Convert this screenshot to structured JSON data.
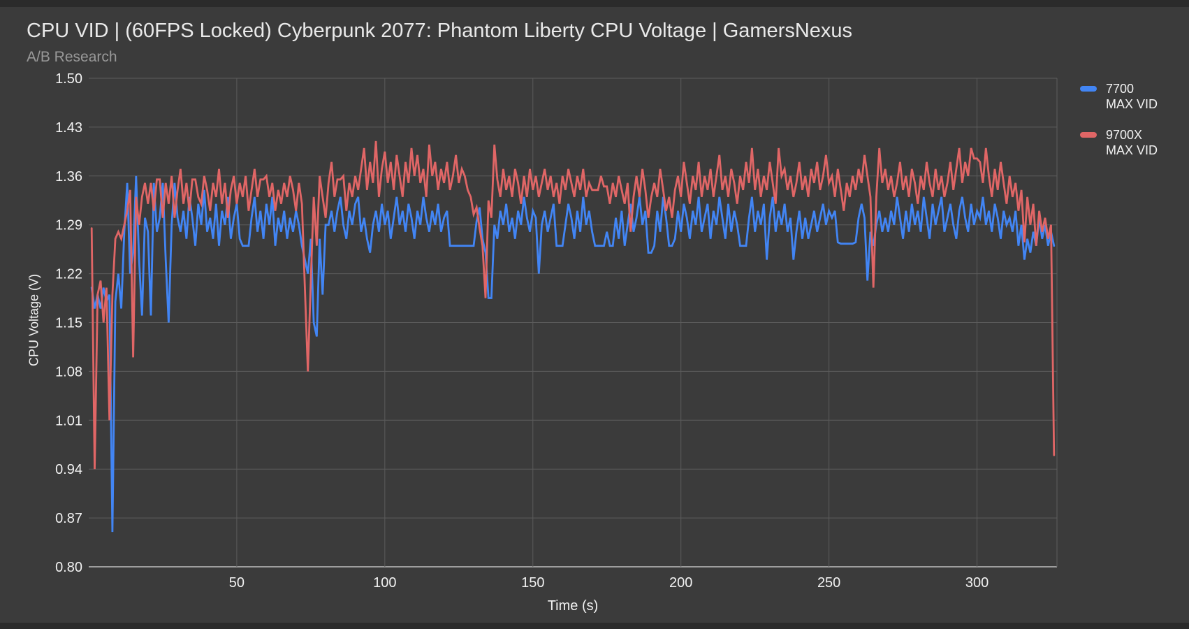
{
  "header": {
    "title": "CPU VID | (60FPS Locked) Cyberpunk 2077: Phantom Liberty CPU Voltage | GamersNexus",
    "subtitle": "A/B Research"
  },
  "legend": [
    {
      "line1": "7700",
      "line2": "MAX VID",
      "color": "#4285f4"
    },
    {
      "line1": "9700X",
      "line2": "MAX VID",
      "color": "#e06666"
    }
  ],
  "colors": {
    "background": "#3b3b3b",
    "gridline": "#5c5c5c",
    "baseline": "#9e9e9e",
    "tick_text": "#f2f2f2"
  },
  "chart_data": {
    "type": "line",
    "title": "CPU VID | (60FPS Locked) Cyberpunk 2077: Phantom Liberty CPU Voltage | GamersNexus",
    "subtitle": "A/B Research",
    "xlabel": "Time (s)",
    "ylabel": "CPU Voltage (V)",
    "xlim": [
      0,
      327
    ],
    "ylim": [
      0.8,
      1.5
    ],
    "x_ticks": [
      50,
      100,
      150,
      200,
      250,
      300
    ],
    "y_ticks": [
      0.8,
      0.87,
      0.94,
      1.01,
      1.08,
      1.15,
      1.22,
      1.29,
      1.36,
      1.43,
      1.5
    ],
    "grid": true,
    "legend_position": "right",
    "x_start": 1,
    "x_step": 1,
    "series": [
      {
        "name": "7700 MAX VID",
        "color": "#4285f4",
        "values": [
          1.2,
          1.17,
          1.19,
          1.17,
          1.2,
          1.18,
          1.19,
          0.85,
          1.18,
          1.22,
          1.17,
          1.28,
          1.35,
          1.22,
          1.25,
          1.36,
          1.24,
          1.16,
          1.3,
          1.28,
          1.16,
          1.35,
          1.28,
          1.3,
          1.35,
          1.24,
          1.15,
          1.29,
          1.35,
          1.3,
          1.28,
          1.31,
          1.27,
          1.33,
          1.3,
          1.26,
          1.32,
          1.29,
          1.34,
          1.28,
          1.3,
          1.27,
          1.32,
          1.26,
          1.31,
          1.29,
          1.33,
          1.27,
          1.3,
          1.32,
          1.27,
          1.26,
          1.26,
          1.26,
          1.3,
          1.33,
          1.28,
          1.31,
          1.27,
          1.32,
          1.29,
          1.33,
          1.26,
          1.3,
          1.28,
          1.31,
          1.27,
          1.3,
          1.28,
          1.31,
          1.29,
          1.26,
          1.24,
          1.22,
          1.27,
          1.15,
          1.13,
          1.27,
          1.19,
          1.29,
          1.29,
          1.31,
          1.28,
          1.31,
          1.33,
          1.29,
          1.27,
          1.31,
          1.29,
          1.32,
          1.33,
          1.28,
          1.3,
          1.27,
          1.25,
          1.29,
          1.31,
          1.28,
          1.32,
          1.29,
          1.31,
          1.27,
          1.3,
          1.33,
          1.29,
          1.31,
          1.28,
          1.32,
          1.3,
          1.27,
          1.31,
          1.29,
          1.33,
          1.3,
          1.28,
          1.31,
          1.29,
          1.32,
          1.28,
          1.3,
          1.31,
          1.26,
          1.26,
          1.26,
          1.26,
          1.26,
          1.26,
          1.26,
          1.26,
          1.26,
          1.295,
          1.315,
          1.27,
          1.25,
          1.185,
          1.185,
          1.29,
          1.27,
          1.31,
          1.29,
          1.32,
          1.28,
          1.3,
          1.27,
          1.31,
          1.29,
          1.33,
          1.3,
          1.28,
          1.31,
          1.3,
          1.22,
          1.29,
          1.31,
          1.28,
          1.3,
          1.32,
          1.26,
          1.26,
          1.26,
          1.29,
          1.32,
          1.3,
          1.27,
          1.31,
          1.28,
          1.33,
          1.29,
          1.31,
          1.28,
          1.26,
          1.26,
          1.26,
          1.26,
          1.28,
          1.26,
          1.26,
          1.3,
          1.27,
          1.31,
          1.26,
          1.29,
          1.32,
          1.28,
          1.3,
          1.33,
          1.29,
          1.31,
          1.25,
          1.25,
          1.26,
          1.31,
          1.28,
          1.33,
          1.3,
          1.26,
          1.26,
          1.27,
          1.31,
          1.28,
          1.32,
          1.3,
          1.27,
          1.31,
          1.29,
          1.33,
          1.28,
          1.3,
          1.32,
          1.27,
          1.31,
          1.29,
          1.33,
          1.3,
          1.27,
          1.32,
          1.28,
          1.31,
          1.29,
          1.26,
          1.26,
          1.26,
          1.3,
          1.33,
          1.28,
          1.31,
          1.29,
          1.32,
          1.24,
          1.3,
          1.33,
          1.28,
          1.31,
          1.29,
          1.32,
          1.28,
          1.3,
          1.24,
          1.28,
          1.31,
          1.27,
          1.3,
          1.27,
          1.29,
          1.31,
          1.28,
          1.3,
          1.32,
          1.29,
          1.31,
          1.3,
          1.31,
          1.265,
          1.263,
          1.263,
          1.263,
          1.263,
          1.263,
          1.265,
          1.3,
          1.32,
          1.3,
          1.21,
          1.28,
          1.26,
          1.29,
          1.31,
          1.28,
          1.3,
          1.28,
          1.31,
          1.29,
          1.33,
          1.3,
          1.27,
          1.31,
          1.28,
          1.32,
          1.29,
          1.31,
          1.28,
          1.33,
          1.3,
          1.27,
          1.32,
          1.29,
          1.31,
          1.33,
          1.28,
          1.3,
          1.32,
          1.29,
          1.27,
          1.31,
          1.33,
          1.3,
          1.28,
          1.32,
          1.29,
          1.31,
          1.3,
          1.33,
          1.29,
          1.31,
          1.28,
          1.32,
          1.3,
          1.27,
          1.31,
          1.29,
          1.3,
          1.28,
          1.31,
          1.26,
          1.29,
          1.24,
          1.27,
          1.25,
          1.28,
          1.26,
          1.3,
          1.27,
          1.29,
          1.26,
          1.28,
          1.26
        ]
      },
      {
        "name": "9700X MAX VID",
        "color": "#e06666",
        "values": [
          1.285,
          0.94,
          1.19,
          1.21,
          1.15,
          1.2,
          1.01,
          1.19,
          1.27,
          1.28,
          1.27,
          1.29,
          1.31,
          1.34,
          1.1,
          1.33,
          1.29,
          1.33,
          1.35,
          1.32,
          1.35,
          1.31,
          1.355,
          1.355,
          1.3,
          1.35,
          1.32,
          1.36,
          1.3,
          1.34,
          1.37,
          1.32,
          1.35,
          1.31,
          1.355,
          1.355,
          1.33,
          1.32,
          1.36,
          1.34,
          1.31,
          1.35,
          1.33,
          1.37,
          1.32,
          1.35,
          1.3,
          1.34,
          1.36,
          1.32,
          1.35,
          1.33,
          1.36,
          1.31,
          1.34,
          1.37,
          1.33,
          1.355,
          1.355,
          1.36,
          1.33,
          1.35,
          1.31,
          1.34,
          1.32,
          1.35,
          1.33,
          1.36,
          1.34,
          1.31,
          1.35,
          1.32,
          1.2,
          1.08,
          1.21,
          1.33,
          1.26,
          1.36,
          1.33,
          1.3,
          1.35,
          1.38,
          1.33,
          1.355,
          1.355,
          1.36,
          1.31,
          1.35,
          1.33,
          1.36,
          1.34,
          1.37,
          1.4,
          1.34,
          1.38,
          1.35,
          1.41,
          1.33,
          1.37,
          1.395,
          1.35,
          1.38,
          1.34,
          1.39,
          1.36,
          1.33,
          1.38,
          1.35,
          1.4,
          1.36,
          1.39,
          1.35,
          1.37,
          1.33,
          1.405,
          1.36,
          1.38,
          1.34,
          1.37,
          1.35,
          1.38,
          1.34,
          1.36,
          1.39,
          1.35,
          1.37,
          1.36,
          1.34,
          1.33,
          1.305,
          1.315,
          1.285,
          1.26,
          1.185,
          1.325,
          1.3,
          1.405,
          1.355,
          1.33,
          1.37,
          1.34,
          1.36,
          1.33,
          1.37,
          1.35,
          1.32,
          1.36,
          1.33,
          1.37,
          1.34,
          1.36,
          1.33,
          1.35,
          1.37,
          1.34,
          1.36,
          1.33,
          1.35,
          1.32,
          1.36,
          1.34,
          1.37,
          1.35,
          1.33,
          1.36,
          1.34,
          1.37,
          1.33,
          1.35,
          1.34,
          1.34,
          1.34,
          1.36,
          1.345,
          1.345,
          1.32,
          1.35,
          1.33,
          1.36,
          1.34,
          1.32,
          1.35,
          1.28,
          1.33,
          1.36,
          1.33,
          1.37,
          1.34,
          1.3,
          1.33,
          1.35,
          1.33,
          1.37,
          1.34,
          1.31,
          1.33,
          1.3,
          1.34,
          1.36,
          1.33,
          1.38,
          1.35,
          1.32,
          1.36,
          1.34,
          1.38,
          1.33,
          1.36,
          1.34,
          1.37,
          1.33,
          1.36,
          1.39,
          1.34,
          1.36,
          1.33,
          1.37,
          1.35,
          1.32,
          1.36,
          1.34,
          1.38,
          1.35,
          1.4,
          1.34,
          1.37,
          1.33,
          1.36,
          1.34,
          1.38,
          1.35,
          1.32,
          1.4,
          1.36,
          1.37,
          1.34,
          1.36,
          1.33,
          1.35,
          1.38,
          1.34,
          1.36,
          1.33,
          1.37,
          1.35,
          1.38,
          1.34,
          1.36,
          1.39,
          1.35,
          1.36,
          1.33,
          1.37,
          1.34,
          1.31,
          1.35,
          1.33,
          1.36,
          1.34,
          1.37,
          1.35,
          1.39,
          1.36,
          1.33,
          1.2,
          1.33,
          1.4,
          1.35,
          1.37,
          1.34,
          1.36,
          1.33,
          1.35,
          1.38,
          1.34,
          1.36,
          1.33,
          1.37,
          1.35,
          1.32,
          1.36,
          1.34,
          1.38,
          1.35,
          1.33,
          1.37,
          1.34,
          1.36,
          1.33,
          1.35,
          1.38,
          1.34,
          1.37,
          1.4,
          1.35,
          1.38,
          1.36,
          1.4,
          1.385,
          1.385,
          1.38,
          1.35,
          1.4,
          1.36,
          1.33,
          1.37,
          1.34,
          1.38,
          1.35,
          1.32,
          1.36,
          1.33,
          1.35,
          1.31,
          1.34,
          1.265,
          1.33,
          1.29,
          1.32,
          1.26,
          1.31,
          1.28,
          1.3,
          1.27,
          1.29,
          0.96
        ]
      }
    ]
  }
}
